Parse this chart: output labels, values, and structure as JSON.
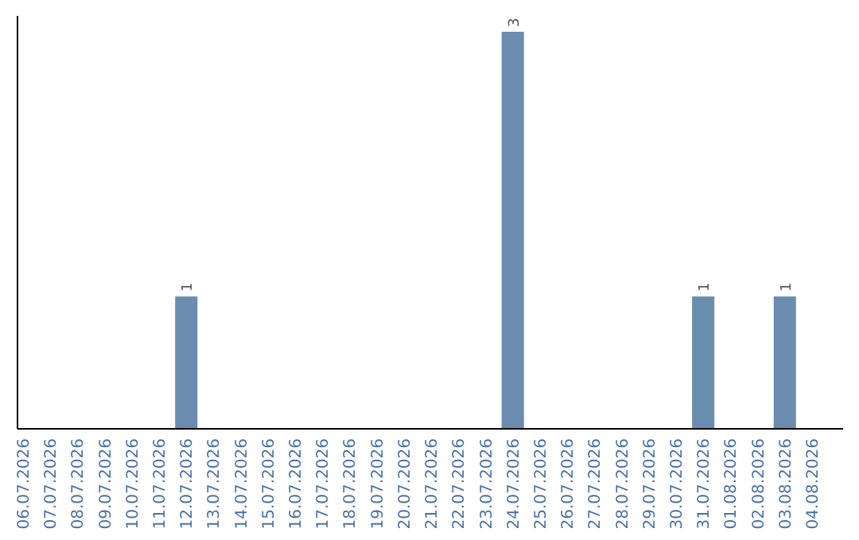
{
  "chart_data": {
    "type": "bar",
    "categories": [
      "06.07.2026",
      "07.07.2026",
      "08.07.2026",
      "09.07.2026",
      "10.07.2026",
      "11.07.2026",
      "12.07.2026",
      "13.07.2026",
      "14.07.2026",
      "15.07.2026",
      "16.07.2026",
      "17.07.2026",
      "18.07.2026",
      "19.07.2026",
      "20.07.2026",
      "21.07.2026",
      "22.07.2026",
      "23.07.2026",
      "24.07.2026",
      "25.07.2026",
      "26.07.2026",
      "27.07.2026",
      "28.07.2026",
      "29.07.2026",
      "30.07.2026",
      "31.07.2026",
      "01.08.2026",
      "02.08.2026",
      "03.08.2026",
      "04.08.2026"
    ],
    "values": [
      0,
      0,
      0,
      0,
      0,
      0,
      1,
      0,
      0,
      0,
      0,
      0,
      0,
      0,
      0,
      0,
      0,
      0,
      3,
      0,
      0,
      0,
      0,
      0,
      0,
      1,
      0,
      0,
      1,
      0
    ],
    "value_labels": [
      null,
      null,
      null,
      null,
      null,
      null,
      "1",
      null,
      null,
      null,
      null,
      null,
      null,
      null,
      null,
      null,
      null,
      null,
      "3",
      null,
      null,
      null,
      null,
      null,
      null,
      "1",
      null,
      null,
      "1",
      null
    ],
    "color": "#6a8caf",
    "ylim": [
      0,
      3
    ],
    "tick_labels": "x"
  }
}
